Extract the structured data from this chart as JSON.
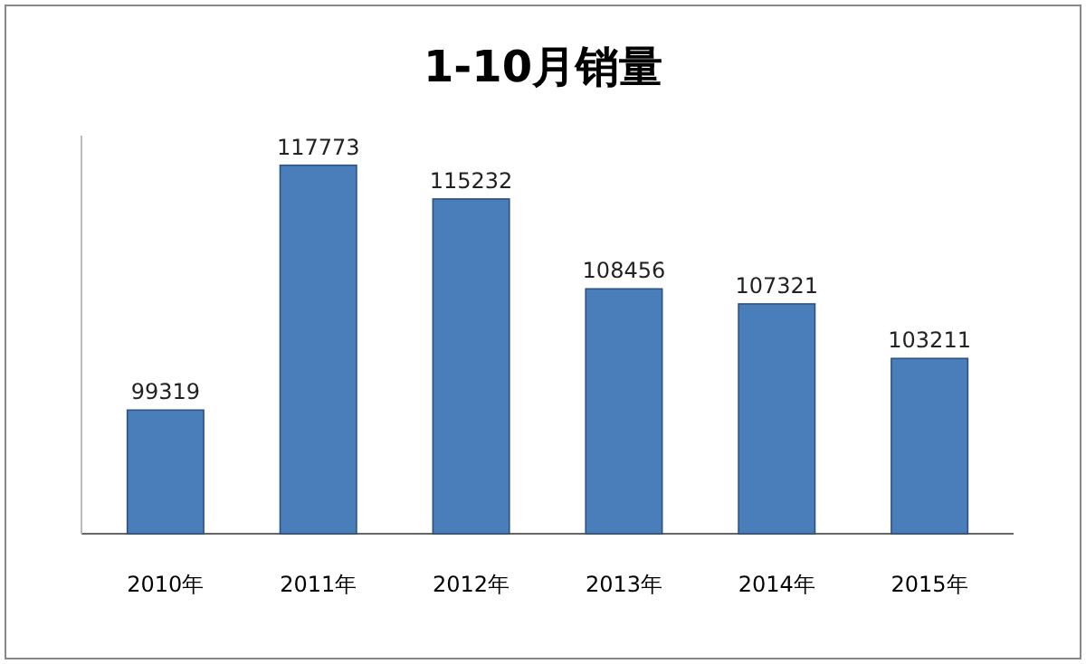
{
  "chart_data": {
    "type": "bar",
    "title": "1-10月销量",
    "categories": [
      "2010年",
      "2011年",
      "2012年",
      "2013年",
      "2014年",
      "2015年"
    ],
    "values": [
      99319,
      117773,
      115232,
      108456,
      107321,
      103211
    ],
    "color": "#4a7ebb",
    "ylim": [
      90000,
      120000
    ],
    "data_labels": true,
    "tick_labels": "x"
  }
}
